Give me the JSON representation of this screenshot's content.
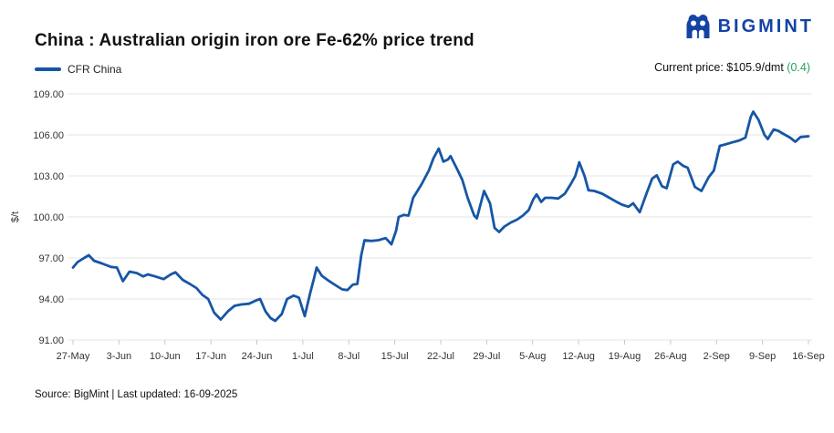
{
  "header": {
    "title": "China : Australian origin iron ore Fe-62% price trend",
    "brand": "BIGMINT"
  },
  "legend": {
    "series_label": "CFR China"
  },
  "current_price": {
    "label": "Current price: $105.9/dmt ",
    "change": "(0.4)"
  },
  "footer": {
    "source": "Source: BigMint | Last updated: 16-09-2025"
  },
  "colors": {
    "line": "#1656a5",
    "brand_blue": "#1443a5",
    "change_green": "#27a35f",
    "grid": "#e4e4e4",
    "axis_text": "#333333"
  },
  "chart_data": {
    "type": "line",
    "title": "China : Australian origin iron ore Fe-62% price trend",
    "series_name": "CFR China",
    "ylabel": "$/t",
    "ylim": [
      91,
      109
    ],
    "ytick_step": 3,
    "ytick_format_decimals": 2,
    "grid": "horizontal-only",
    "legend_position": "top-left",
    "x_unit": "days-since-27-May",
    "x_range_days": [
      0,
      112
    ],
    "x_tick_days": [
      0,
      7,
      14,
      21,
      28,
      35,
      42,
      49,
      56,
      63,
      70,
      77,
      84,
      91,
      98,
      105,
      112
    ],
    "x_tick_labels": [
      "27-May",
      "3-Jun",
      "10-Jun",
      "17-Jun",
      "24-Jun",
      "1-Jul",
      "8-Jul",
      "15-Jul",
      "22-Jul",
      "29-Jul",
      "5-Aug",
      "12-Aug",
      "19-Aug",
      "26-Aug",
      "2-Sep",
      "9-Sep",
      "16-Sep"
    ],
    "current_value": 105.9,
    "points": [
      [
        0,
        96.3
      ],
      [
        0.7,
        96.7
      ],
      [
        1.7,
        97.0
      ],
      [
        2.4,
        97.2
      ],
      [
        3.2,
        96.8
      ],
      [
        4.4,
        96.6
      ],
      [
        5.8,
        96.35
      ],
      [
        6.7,
        96.3
      ],
      [
        7.6,
        95.3
      ],
      [
        8.6,
        96.0
      ],
      [
        9.7,
        95.9
      ],
      [
        10.7,
        95.65
      ],
      [
        11.4,
        95.8
      ],
      [
        12.5,
        95.65
      ],
      [
        13.8,
        95.45
      ],
      [
        14.9,
        95.8
      ],
      [
        15.6,
        95.95
      ],
      [
        16.7,
        95.4
      ],
      [
        17.8,
        95.1
      ],
      [
        18.8,
        94.8
      ],
      [
        19.7,
        94.3
      ],
      [
        20.6,
        94.0
      ],
      [
        21.5,
        93.0
      ],
      [
        22.5,
        92.5
      ],
      [
        23.6,
        93.1
      ],
      [
        24.6,
        93.5
      ],
      [
        25.6,
        93.6
      ],
      [
        26.8,
        93.65
      ],
      [
        27.9,
        93.9
      ],
      [
        28.5,
        94.0
      ],
      [
        29.3,
        93.1
      ],
      [
        30.1,
        92.6
      ],
      [
        30.8,
        92.4
      ],
      [
        31.8,
        92.9
      ],
      [
        32.6,
        94.0
      ],
      [
        33.6,
        94.25
      ],
      [
        34.4,
        94.1
      ],
      [
        35.3,
        92.75
      ],
      [
        36.1,
        94.4
      ],
      [
        36.7,
        95.5
      ],
      [
        37.1,
        96.3
      ],
      [
        37.9,
        95.7
      ],
      [
        38.9,
        95.35
      ],
      [
        40,
        95.0
      ],
      [
        41,
        94.7
      ],
      [
        41.8,
        94.65
      ],
      [
        42.6,
        95.05
      ],
      [
        43.3,
        95.1
      ],
      [
        43.9,
        97.2
      ],
      [
        44.4,
        98.3
      ],
      [
        45.4,
        98.25
      ],
      [
        46.5,
        98.3
      ],
      [
        47.6,
        98.45
      ],
      [
        48.5,
        98.0
      ],
      [
        49.2,
        99.0
      ],
      [
        49.6,
        100.0
      ],
      [
        50.4,
        100.15
      ],
      [
        51.1,
        100.1
      ],
      [
        51.8,
        101.4
      ],
      [
        53.1,
        102.4
      ],
      [
        54.2,
        103.4
      ],
      [
        54.9,
        104.3
      ],
      [
        55.7,
        105.0
      ],
      [
        56.4,
        104.05
      ],
      [
        57.1,
        104.2
      ],
      [
        57.5,
        104.45
      ],
      [
        58.6,
        103.4
      ],
      [
        59.3,
        102.7
      ],
      [
        60.1,
        101.4
      ],
      [
        61.1,
        100.1
      ],
      [
        61.5,
        99.9
      ],
      [
        62.6,
        101.9
      ],
      [
        63.5,
        101.0
      ],
      [
        64.2,
        99.2
      ],
      [
        64.9,
        98.9
      ],
      [
        65.7,
        99.3
      ],
      [
        66.7,
        99.6
      ],
      [
        67.6,
        99.8
      ],
      [
        68.5,
        100.1
      ],
      [
        69.4,
        100.5
      ],
      [
        70.1,
        101.3
      ],
      [
        70.6,
        101.65
      ],
      [
        71.3,
        101.1
      ],
      [
        71.9,
        101.4
      ],
      [
        72.9,
        101.4
      ],
      [
        73.9,
        101.35
      ],
      [
        74.9,
        101.7
      ],
      [
        75.8,
        102.4
      ],
      [
        76.5,
        103.0
      ],
      [
        77.1,
        104.0
      ],
      [
        77.9,
        103.0
      ],
      [
        78.5,
        101.95
      ],
      [
        79.4,
        101.9
      ],
      [
        80.6,
        101.7
      ],
      [
        81.7,
        101.4
      ],
      [
        82.6,
        101.15
      ],
      [
        83.6,
        100.9
      ],
      [
        84.6,
        100.75
      ],
      [
        85.3,
        101.0
      ],
      [
        86.3,
        100.35
      ],
      [
        87.4,
        101.8
      ],
      [
        88.2,
        102.8
      ],
      [
        88.9,
        103.05
      ],
      [
        89.7,
        102.25
      ],
      [
        90.4,
        102.1
      ],
      [
        91.4,
        103.85
      ],
      [
        92.1,
        104.05
      ],
      [
        92.9,
        103.75
      ],
      [
        93.6,
        103.6
      ],
      [
        94.7,
        102.2
      ],
      [
        95.7,
        101.9
      ],
      [
        96.8,
        102.9
      ],
      [
        97.6,
        103.4
      ],
      [
        98.5,
        105.2
      ],
      [
        99.3,
        105.3
      ],
      [
        100.4,
        105.45
      ],
      [
        101.5,
        105.6
      ],
      [
        102.4,
        105.8
      ],
      [
        103.2,
        107.3
      ],
      [
        103.6,
        107.7
      ],
      [
        104.4,
        107.1
      ],
      [
        105.3,
        106.0
      ],
      [
        105.8,
        105.7
      ],
      [
        106.7,
        106.4
      ],
      [
        107.4,
        106.3
      ],
      [
        108.1,
        106.1
      ],
      [
        109.2,
        105.8
      ],
      [
        110,
        105.5
      ],
      [
        110.8,
        105.85
      ],
      [
        112,
        105.9
      ]
    ]
  }
}
